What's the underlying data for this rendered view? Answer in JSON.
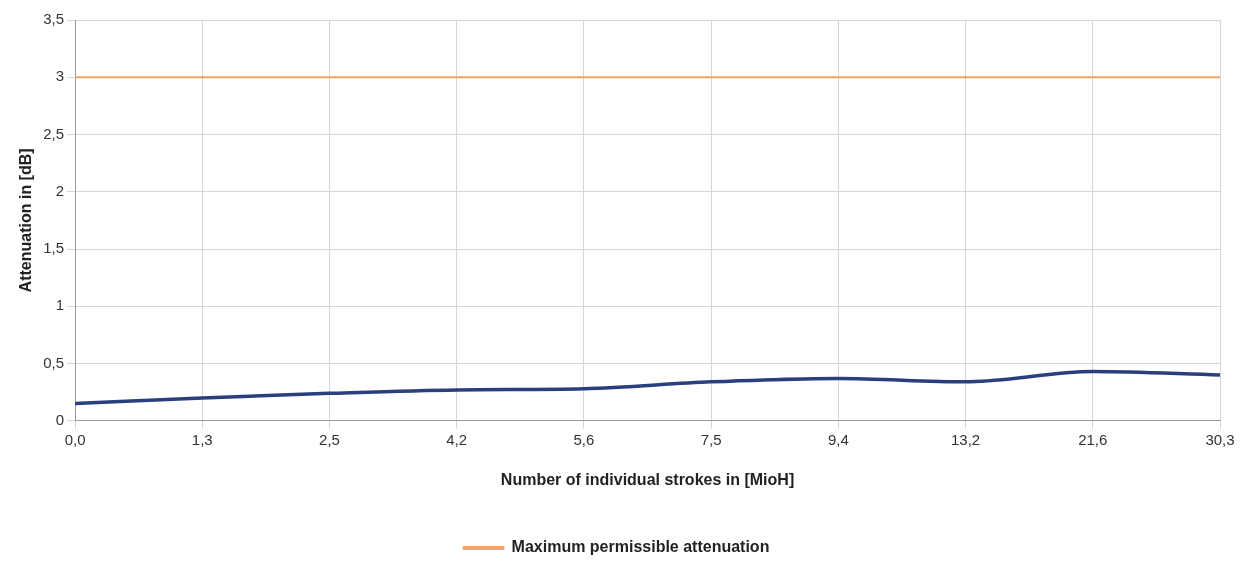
{
  "chart_data": {
    "type": "line",
    "xlabel": "Number of individual strokes in [MioH]",
    "ylabel": "Attenuation in [dB]",
    "categories": [
      "0,0",
      "1,3",
      "2,5",
      "4,2",
      "5,6",
      "7,5",
      "9,4",
      "13,2",
      "21,6",
      "30,3"
    ],
    "series": [
      {
        "color": "#2b3f7e",
        "values": [
          0.15,
          0.2,
          0.24,
          0.27,
          0.28,
          0.34,
          0.37,
          0.34,
          0.43,
          0.4
        ]
      },
      {
        "name": "Maximum permissible attenuation",
        "color": "#f0a36a",
        "values": [
          3,
          3,
          3,
          3,
          3,
          3,
          3,
          3,
          3,
          3
        ]
      }
    ],
    "ylim": [
      0,
      3.5
    ],
    "yticks": [
      0,
      {
        "value": 0.5,
        "label": "0,5"
      },
      1,
      {
        "value": 1.5,
        "label": "1,5"
      },
      2,
      {
        "value": 2.5,
        "label": "2,5"
      },
      3,
      {
        "value": 3.5,
        "label": "3,5"
      }
    ],
    "grid": true,
    "legend": "bottom",
    "marker": "none",
    "line_style": "solid"
  }
}
